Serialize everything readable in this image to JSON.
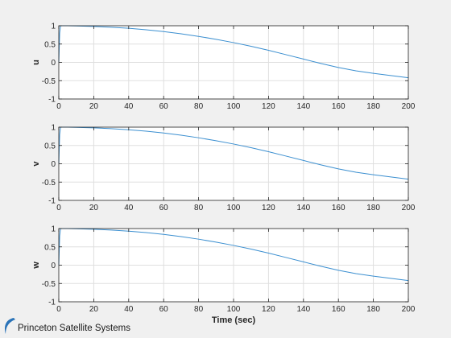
{
  "logo": {
    "text": "Princeton Satellite Systems"
  },
  "colors": {
    "line": "#3b8fd0",
    "background": "#f0f0f0",
    "axes": "#ffffff",
    "grid": "#dfdfdf",
    "frame": "#262626"
  },
  "chart_data": [
    {
      "type": "line",
      "ylabel": "u",
      "xlabel": "",
      "xlim": [
        0,
        200
      ],
      "ylim": [
        -1,
        1
      ],
      "xticks": [
        0,
        20,
        40,
        60,
        80,
        100,
        120,
        140,
        160,
        180,
        200
      ],
      "yticks": [
        -1,
        -0.5,
        0,
        0.5,
        1
      ],
      "grid": true,
      "x": [
        0,
        0.5,
        1,
        2,
        5,
        10,
        20,
        30,
        40,
        50,
        60,
        70,
        80,
        90,
        100,
        110,
        120,
        130,
        140,
        150,
        160,
        170,
        180,
        190,
        200
      ],
      "y": [
        0.0,
        0.8,
        1.0,
        1.0,
        1.0,
        0.995,
        0.98,
        0.96,
        0.93,
        0.89,
        0.84,
        0.78,
        0.71,
        0.63,
        0.54,
        0.44,
        0.33,
        0.21,
        0.09,
        -0.03,
        -0.14,
        -0.23,
        -0.3,
        -0.36,
        -0.42
      ]
    },
    {
      "type": "line",
      "ylabel": "v",
      "xlabel": "",
      "xlim": [
        0,
        200
      ],
      "ylim": [
        -1,
        1
      ],
      "xticks": [
        0,
        20,
        40,
        60,
        80,
        100,
        120,
        140,
        160,
        180,
        200
      ],
      "yticks": [
        -1,
        -0.5,
        0,
        0.5,
        1
      ],
      "grid": true,
      "x": [
        0,
        0.5,
        1,
        2,
        5,
        10,
        20,
        30,
        40,
        50,
        60,
        70,
        80,
        90,
        100,
        110,
        120,
        130,
        140,
        150,
        160,
        170,
        180,
        190,
        200
      ],
      "y": [
        0.0,
        0.8,
        1.0,
        1.0,
        1.0,
        0.995,
        0.98,
        0.96,
        0.93,
        0.89,
        0.84,
        0.78,
        0.71,
        0.63,
        0.54,
        0.44,
        0.33,
        0.21,
        0.09,
        -0.03,
        -0.14,
        -0.23,
        -0.3,
        -0.36,
        -0.42
      ]
    },
    {
      "type": "line",
      "ylabel": "w",
      "xlabel": "Time (sec)",
      "xlim": [
        0,
        200
      ],
      "ylim": [
        -1,
        1
      ],
      "xticks": [
        0,
        20,
        40,
        60,
        80,
        100,
        120,
        140,
        160,
        180,
        200
      ],
      "yticks": [
        -1,
        -0.5,
        0,
        0.5,
        1
      ],
      "grid": true,
      "x": [
        0,
        0.5,
        1,
        2,
        5,
        10,
        20,
        30,
        40,
        50,
        60,
        70,
        80,
        90,
        100,
        110,
        120,
        130,
        140,
        150,
        160,
        170,
        180,
        190,
        200
      ],
      "y": [
        0.0,
        0.8,
        1.0,
        1.0,
        1.0,
        0.995,
        0.98,
        0.96,
        0.93,
        0.89,
        0.84,
        0.78,
        0.71,
        0.63,
        0.54,
        0.44,
        0.33,
        0.21,
        0.09,
        -0.03,
        -0.14,
        -0.23,
        -0.3,
        -0.36,
        -0.42
      ]
    }
  ]
}
